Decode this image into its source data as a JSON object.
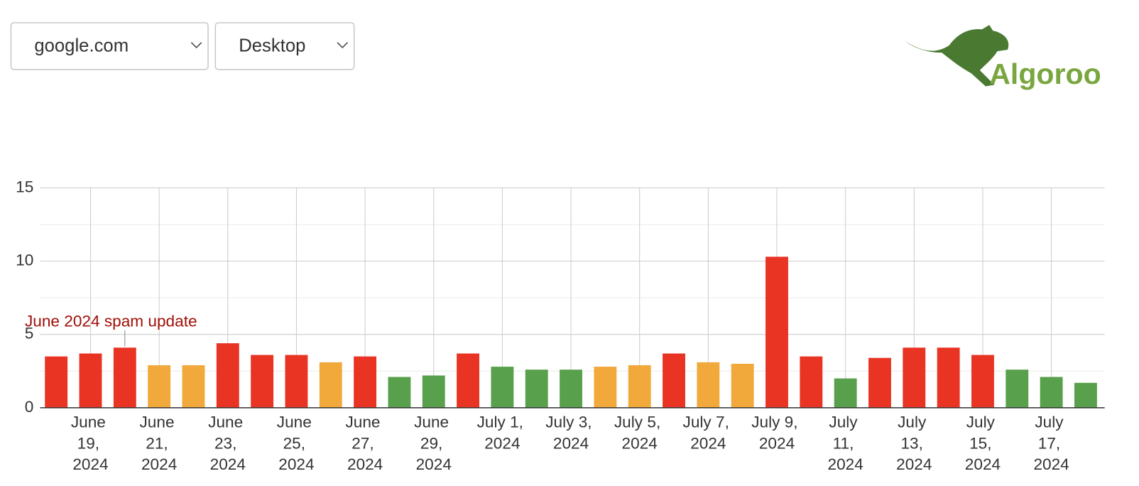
{
  "header": {
    "site_select": "google.com",
    "device_select": "Desktop",
    "logo": "Algoroo"
  },
  "chart_data": {
    "type": "bar",
    "annotation": "June 2024 spam update",
    "categories": [
      null,
      "June 19, 2024",
      null,
      "June 21, 2024",
      null,
      "June 23, 2024",
      null,
      "June 25, 2024",
      null,
      "June 27, 2024",
      null,
      "June 29, 2024",
      null,
      "July 1, 2024",
      null,
      "July 3, 2024",
      null,
      "July 5, 2024",
      null,
      "July 7, 2024",
      null,
      "July 9, 2024",
      null,
      "July 11, 2024",
      null,
      "July 13, 2024",
      null,
      "July 15, 2024",
      null,
      "July 17, 2024",
      null
    ],
    "values": [
      3.5,
      3.7,
      4.1,
      2.9,
      2.9,
      4.4,
      3.6,
      3.6,
      3.1,
      3.5,
      2.1,
      2.2,
      3.7,
      2.8,
      2.6,
      2.6,
      2.8,
      2.9,
      3.7,
      3.1,
      3.0,
      10.3,
      3.5,
      2.0,
      3.4,
      4.1,
      4.1,
      3.6,
      2.6,
      2.1,
      1.7
    ],
    "colors": [
      "#e93323",
      "#e93323",
      "#e93323",
      "#f2a93b",
      "#f2a93b",
      "#e93323",
      "#e93323",
      "#e93323",
      "#f2a93b",
      "#e93323",
      "#58a04b",
      "#58a04b",
      "#e93323",
      "#58a04b",
      "#58a04b",
      "#58a04b",
      "#f2a93b",
      "#f2a93b",
      "#e93323",
      "#f2a93b",
      "#f2a93b",
      "#e93323",
      "#e93323",
      "#58a04b",
      "#e93323",
      "#e93323",
      "#e93323",
      "#e93323",
      "#58a04b",
      "#58a04b",
      "#58a04b"
    ],
    "ylim": [
      0,
      15
    ],
    "yticks": [
      0,
      5,
      10,
      15
    ],
    "minor_yticks": [
      2.5,
      7.5,
      12.5
    ],
    "grid": true
  }
}
